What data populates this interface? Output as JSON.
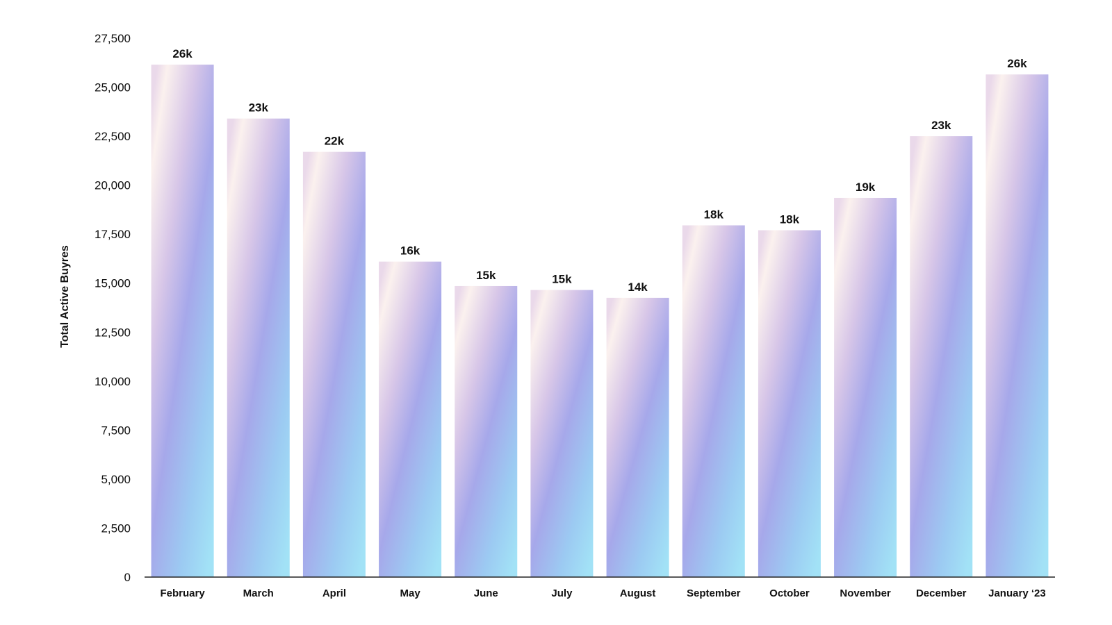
{
  "chart_data": {
    "type": "bar",
    "title": "",
    "xlabel": "",
    "ylabel": "Total Active Buyres",
    "categories": [
      "February",
      "March",
      "April",
      "May",
      "June",
      "July",
      "August",
      "September",
      "October",
      "November",
      "December",
      "January ‘23"
    ],
    "values": [
      26150,
      23400,
      21700,
      16100,
      14850,
      14650,
      14250,
      17950,
      17700,
      19350,
      22500,
      25650
    ],
    "data_labels": [
      "26k",
      "23k",
      "22k",
      "16k",
      "15k",
      "15k",
      "14k",
      "18k",
      "18k",
      "19k",
      "23k",
      "26k"
    ],
    "ylim": [
      0,
      27500
    ],
    "yticks": [
      0,
      2500,
      5000,
      7500,
      10000,
      12500,
      15000,
      17500,
      20000,
      22500,
      25000,
      27500
    ],
    "ytick_labels": [
      "0",
      "2,500",
      "5,000",
      "7,500",
      "10,000",
      "12,500",
      "15,000",
      "17,500",
      "20,000",
      "22,500",
      "25,000",
      "27,500"
    ],
    "grid": false,
    "legend": "none",
    "colors": {
      "bar_gradient": [
        "#fbf1ee",
        "#ddc9e8",
        "#a9a8ea",
        "#9fd9f5"
      ],
      "axis": "#222222",
      "text": "#111111"
    }
  }
}
